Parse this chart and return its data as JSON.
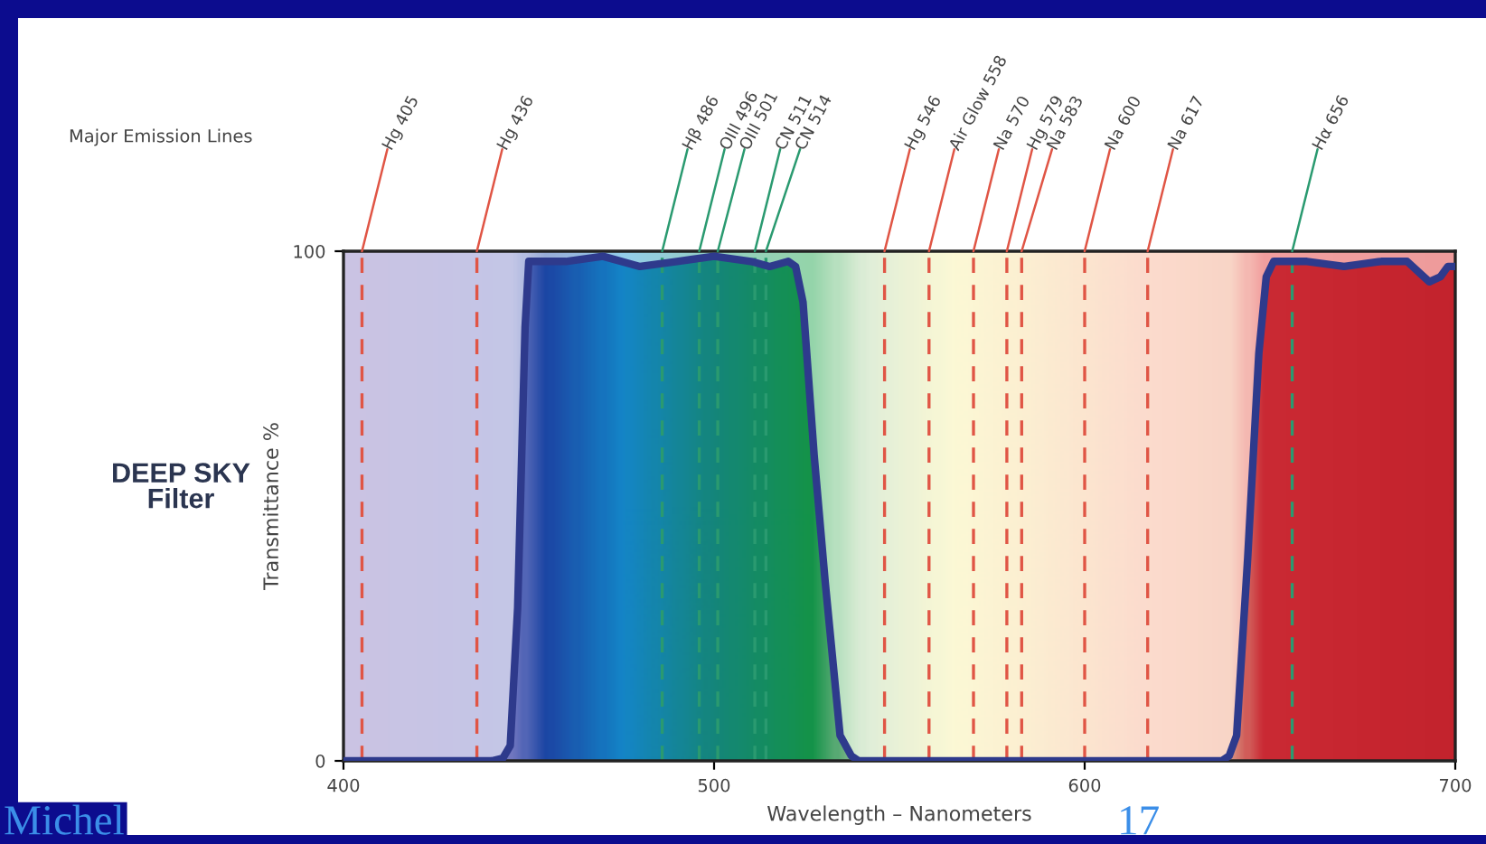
{
  "chart_data": {
    "type": "area",
    "title": "DEEP SKY\nFilter",
    "xlabel": "Wavelength – Nanometers",
    "ylabel": "Transmittance %",
    "xlim": [
      400,
      700
    ],
    "ylim": [
      0,
      100
    ],
    "xticks": [
      400,
      500,
      600,
      700
    ],
    "yticks": [
      0,
      100
    ],
    "grid": false,
    "series": [
      {
        "color": "#2e3a8c",
        "x": [
          400,
          440,
          443,
          445,
          447,
          449,
          450,
          460,
          470,
          480,
          490,
          500,
          510,
          515,
          520,
          522,
          524,
          527,
          530,
          534,
          537,
          539,
          560,
          600,
          630,
          637,
          639,
          641,
          644,
          647,
          649,
          651,
          660,
          670,
          680,
          687,
          690,
          693,
          696,
          698,
          700
        ],
        "values": [
          0,
          0,
          0.5,
          3,
          30,
          85,
          98,
          98,
          99,
          97,
          98,
          99,
          98,
          97,
          98,
          97,
          90,
          60,
          35,
          5,
          1,
          0,
          0,
          0,
          0,
          0,
          1,
          5,
          40,
          80,
          95,
          98,
          98,
          97,
          98,
          98,
          96,
          94,
          95,
          97,
          97
        ]
      }
    ],
    "ref_lines": [
      {
        "axis": "x",
        "value": 405,
        "label": "Hg 405",
        "color": "#e05545",
        "line_style": "dashed"
      },
      {
        "axis": "x",
        "value": 436,
        "label": "Hg 436",
        "color": "#e05545",
        "line_style": "dashed"
      },
      {
        "axis": "x",
        "value": 486,
        "label": "Hβ 486",
        "color": "#2a9a70",
        "line_style": "dashed"
      },
      {
        "axis": "x",
        "value": 496,
        "label": "OIII 496",
        "color": "#2a9a70",
        "line_style": "dashed"
      },
      {
        "axis": "x",
        "value": 501,
        "label": "OIII 501",
        "color": "#2a9a70",
        "line_style": "dashed"
      },
      {
        "axis": "x",
        "value": 511,
        "label": "CN 511",
        "color": "#2a9a70",
        "line_style": "dashed"
      },
      {
        "axis": "x",
        "value": 514,
        "label": "CN 514",
        "color": "#2a9a70",
        "line_style": "dashed"
      },
      {
        "axis": "x",
        "value": 546,
        "label": "Hg 546",
        "color": "#e05545",
        "line_style": "dashed"
      },
      {
        "axis": "x",
        "value": 558,
        "label": "Air Glow 558",
        "color": "#e05545",
        "line_style": "dashed"
      },
      {
        "axis": "x",
        "value": 570,
        "label": "Na 570",
        "color": "#e05545",
        "line_style": "dashed"
      },
      {
        "axis": "x",
        "value": 579,
        "label": "Hg 579",
        "color": "#e05545",
        "line_style": "dashed"
      },
      {
        "axis": "x",
        "value": 583,
        "label": "Na 583",
        "color": "#e05545",
        "line_style": "dashed"
      },
      {
        "axis": "x",
        "value": 600,
        "label": "Na 600",
        "color": "#e05545",
        "line_style": "dashed"
      },
      {
        "axis": "x",
        "value": 617,
        "label": "Na 617",
        "color": "#e05545",
        "line_style": "dashed"
      },
      {
        "axis": "x",
        "value": 656,
        "label": "Hα 656",
        "color": "#2a9a70",
        "line_style": "dashed"
      }
    ],
    "annotations": [
      "Major Emission Lines",
      "Michel",
      "17"
    ]
  }
}
